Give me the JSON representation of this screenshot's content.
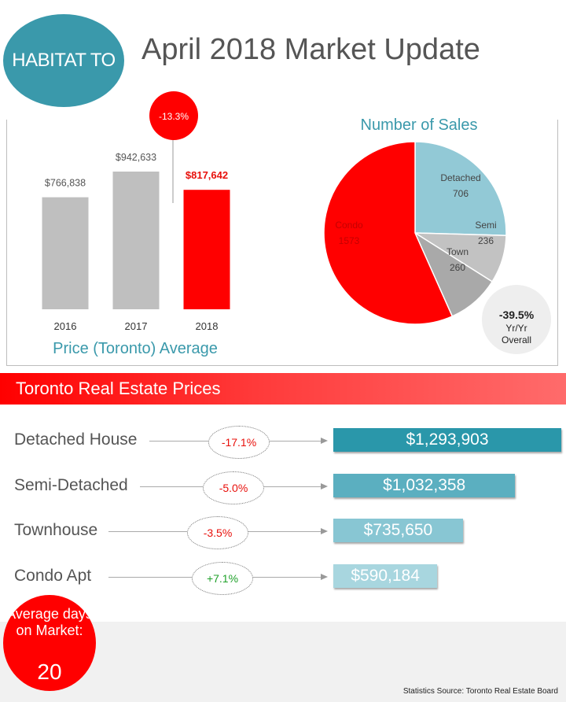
{
  "header": {
    "logo_text": "HABITAT TO",
    "title": "April 2018 Market Update"
  },
  "chart_data": [
    {
      "type": "bar",
      "title": "Price (Toronto) Average",
      "categories": [
        "2016",
        "2017",
        "2018"
      ],
      "values": [
        766838,
        942633,
        817642
      ],
      "value_labels": [
        "$766,838",
        "$942,633",
        "$817,642"
      ],
      "highlight_index": 2,
      "change_label": "-13.3%",
      "colors": [
        "#bfbfbf",
        "#bfbfbf",
        "#ff0000"
      ]
    },
    {
      "type": "pie",
      "title": "Number of Sales",
      "categories": [
        "Detached",
        "Semi",
        "Town",
        "Condo"
      ],
      "values": [
        706,
        236,
        260,
        1573
      ],
      "colors": [
        "#92c9d6",
        "#c2c2c2",
        "#a9a9a9",
        "#ff0000"
      ],
      "overall_change": "-39.5%",
      "overall_label": [
        "Yr/Yr",
        "Overall"
      ]
    },
    {
      "type": "bar",
      "orientation": "horizontal",
      "title": "Toronto Real Estate Prices",
      "categories": [
        "Detached House",
        "Semi-Detached",
        "Townhouse",
        "Condo Apt"
      ],
      "values": [
        1293903,
        1032358,
        735650,
        590184
      ],
      "value_labels": [
        "$1,293,903",
        "$1,032,358",
        "$735,650",
        "$590,184"
      ],
      "changes": [
        "-17.1%",
        "-5.0%",
        "-3.5%",
        "+7.1%"
      ],
      "change_colors": [
        "#e8100b",
        "#e8100b",
        "#e8100b",
        "#1fa12a"
      ],
      "colors": [
        "#2a97aa",
        "#5bafc0",
        "#88c6d3",
        "#a8d6df"
      ]
    }
  ],
  "days_on_market": {
    "label": "Average days on Market:",
    "value": "20"
  },
  "footer": {
    "source": "Statistics Source: Toronto Real Estate Board"
  }
}
